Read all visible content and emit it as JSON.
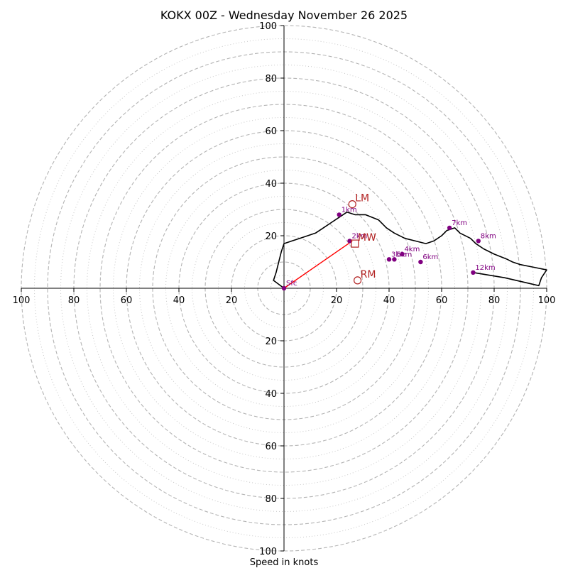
{
  "chart_data": {
    "type": "hodograph",
    "title": "KOKX 00Z - Wednesday November 26 2025",
    "xlabel": "Speed in knots",
    "ylabel": "",
    "xlim": [
      -100,
      100
    ],
    "ylim": [
      -100,
      100
    ],
    "grid": true,
    "rings_major_knots": [
      10,
      20,
      30,
      40,
      50,
      60,
      70,
      80,
      90,
      100
    ],
    "rings_minor_knots": [
      5,
      15,
      25,
      35,
      45,
      55,
      65,
      75,
      85,
      95
    ],
    "x_tick_values": [
      -100,
      -80,
      -60,
      -40,
      -20,
      20,
      40,
      60,
      80,
      100
    ],
    "x_tick_labels": [
      "100",
      "80",
      "60",
      "40",
      "20",
      "20",
      "40",
      "60",
      "80",
      "100"
    ],
    "y_tick_values": [
      100,
      80,
      60,
      40,
      20,
      -20,
      -40,
      -60,
      -80,
      -100
    ],
    "y_tick_labels": [
      "100",
      "80",
      "60",
      "40",
      "20",
      "20",
      "40",
      "60",
      "80",
      "100"
    ],
    "hodograph_trace": {
      "u": [
        0,
        -4,
        -3,
        -2,
        -1,
        0,
        3,
        6,
        9,
        12,
        15,
        18,
        21,
        24,
        27,
        31,
        36,
        39,
        42,
        46,
        50,
        54,
        57,
        60,
        62,
        65,
        67,
        71,
        73,
        76,
        80,
        85,
        87,
        90,
        95,
        100,
        98,
        97,
        84,
        72
      ],
      "v": [
        0,
        3,
        6,
        10,
        14,
        17,
        18,
        19,
        20,
        21,
        23,
        25,
        27,
        29,
        28,
        28,
        26,
        23,
        21,
        19,
        18,
        17,
        18,
        20,
        22,
        23,
        21,
        19,
        17,
        15,
        13,
        11,
        10,
        9,
        8,
        7,
        4,
        1,
        4,
        6
      ],
      "color": "#000000"
    },
    "height_markers": [
      {
        "label": "Sfc",
        "u": 0,
        "v": 0
      },
      {
        "label": "1km",
        "u": 21,
        "v": 28
      },
      {
        "label": "2km",
        "u": 25,
        "v": 18
      },
      {
        "label": "3km",
        "u": 40,
        "v": 11
      },
      {
        "label": "4km",
        "u": 45,
        "v": 13
      },
      {
        "label": "5km",
        "u": 42,
        "v": 11
      },
      {
        "label": "6km",
        "u": 52,
        "v": 10
      },
      {
        "label": "7km",
        "u": 63,
        "v": 23
      },
      {
        "label": "8km",
        "u": 74,
        "v": 18
      },
      {
        "label": "12km",
        "u": 72,
        "v": 6
      }
    ],
    "marker_color": "#800080",
    "storm_motion": [
      {
        "label": "LM",
        "u": 26,
        "v": 32
      },
      {
        "label": "MW",
        "u": 27,
        "v": 17
      },
      {
        "label": "RM",
        "u": 28,
        "v": 3
      }
    ],
    "storm_color": "#b22222",
    "shear_vector": {
      "from_u": 0,
      "from_v": 0,
      "to_u": 26,
      "to_v": 18,
      "color": "#ff0000"
    }
  }
}
